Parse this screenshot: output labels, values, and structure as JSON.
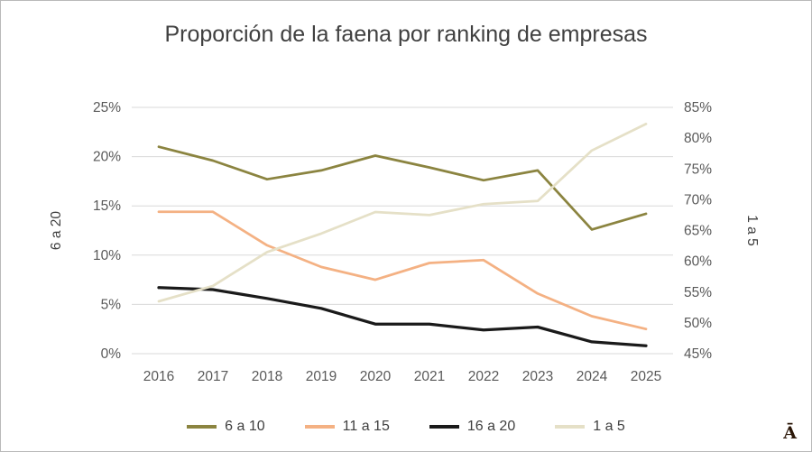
{
  "page": {
    "logo_glyph": "Ā"
  },
  "chart_data": {
    "type": "line",
    "title": "Proporción de la faena por ranking de empresas",
    "x": [
      "2016",
      "2017",
      "2018",
      "2019",
      "2020",
      "2021",
      "2022",
      "2023",
      "2024",
      "2025"
    ],
    "grid": true,
    "grid_color": "#d9d9d9",
    "legend_position": "bottom",
    "left_axis": {
      "label": "6 a 20",
      "min": 0,
      "max": 25,
      "tick_values": [
        0,
        5,
        10,
        15,
        20,
        25
      ],
      "ticks": [
        "0%",
        "5%",
        "10%",
        "15%",
        "20%",
        "25%"
      ]
    },
    "right_axis": {
      "label": "1 a 5",
      "min": 45,
      "max": 85,
      "tick_values": [
        45,
        50,
        55,
        60,
        65,
        70,
        75,
        80,
        85
      ],
      "ticks": [
        "45%",
        "50%",
        "55%",
        "60%",
        "65%",
        "70%",
        "75%",
        "80%",
        "85%"
      ]
    },
    "series": [
      {
        "name": "6 a 10",
        "axis": "left",
        "color": "#8b8440",
        "width": 2.75,
        "values": [
          21.0,
          19.6,
          17.7,
          18.6,
          20.1,
          18.9,
          17.6,
          18.6,
          12.6,
          14.2
        ]
      },
      {
        "name": "11 a 15",
        "axis": "left",
        "color": "#f4b183",
        "width": 2.75,
        "values": [
          14.4,
          14.4,
          11.0,
          8.8,
          7.5,
          9.2,
          9.5,
          6.1,
          3.8,
          2.5
        ]
      },
      {
        "name": "16 a 20",
        "axis": "left",
        "color": "#1a1a1a",
        "width": 3.25,
        "values": [
          6.7,
          6.5,
          5.6,
          4.6,
          3.0,
          3.0,
          2.4,
          2.7,
          1.2,
          0.8
        ]
      },
      {
        "name": "1 a 5",
        "axis": "right",
        "color": "#e5e0c7",
        "width": 2.75,
        "values": [
          53.5,
          56.0,
          61.5,
          64.5,
          68.0,
          67.5,
          69.3,
          69.8,
          78.0,
          82.3
        ]
      }
    ]
  }
}
